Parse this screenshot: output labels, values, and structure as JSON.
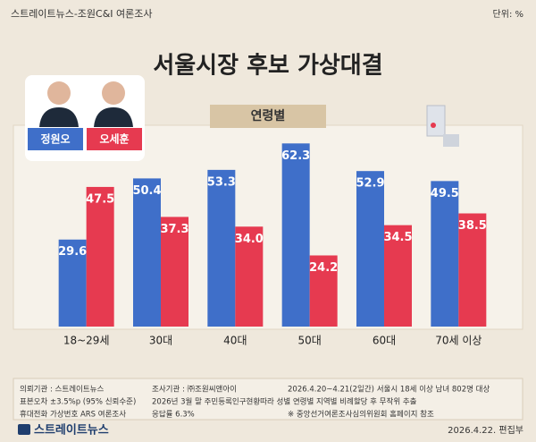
{
  "chart_data": {
    "type": "bar",
    "source": "스트레이트뉴스-조원C&I 여론조사",
    "unit": "단위: %",
    "title": "서울시장 후보 가상대결",
    "section": "연령별",
    "categories": [
      "18~29세",
      "30대",
      "40대",
      "50대",
      "60대",
      "70세 이상"
    ],
    "series": [
      {
        "name": "정원오",
        "color": "#3f6fc9",
        "values": [
          29.6,
          50.4,
          53.3,
          62.3,
          52.9,
          49.5
        ]
      },
      {
        "name": "오세훈",
        "color": "#e63a50",
        "values": [
          47.5,
          37.3,
          34.0,
          24.2,
          34.5,
          38.5
        ],
        "value_labels": [
          "47.5",
          "37.3",
          "34.0",
          "24.2",
          "34.5",
          "38.5"
        ]
      }
    ],
    "ylim": [
      0,
      70
    ],
    "notes": [
      [
        "의뢰기관 : 스트레이트뉴스",
        "조사기관 : ㈜조원씨앤아이",
        "2026.4.20~4.21(2일간) 서울시 18세 이상 남녀 802명 대상"
      ],
      [
        "표본오차 ±3.5%p (95% 신뢰수준)",
        "2026년 3월 말 주민등록인구현황따라 성별 연령별 지역별 비례할당 후 무작위 추출"
      ],
      [
        "휴대전화 가상번호 ARS 여론조사",
        "응답률 6.3%",
        "※ 중앙선거여론조사심의위원회 홈페이지 참조"
      ]
    ],
    "brand": "스트레이트뉴스",
    "date": "2026.4.22. 편집부"
  }
}
